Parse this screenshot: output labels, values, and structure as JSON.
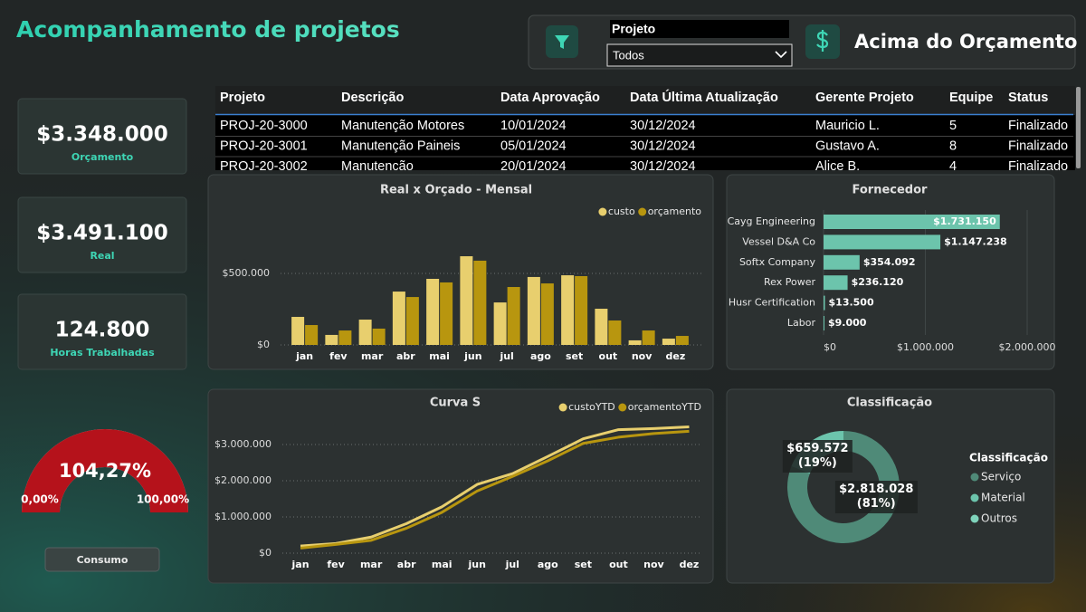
{
  "header": {
    "title": "Acompanhamento de projetos"
  },
  "filter": {
    "label": "Projeto",
    "selected": "Todos"
  },
  "status": {
    "label": "Acima do Orçamento"
  },
  "kpis": [
    {
      "value": "$3.348.000",
      "label": "Orçamento"
    },
    {
      "value": "$3.491.100",
      "label": "Real"
    },
    {
      "value": "124.800",
      "label": "Horas Trabalhadas"
    }
  ],
  "gauge": {
    "value": 104.27,
    "value_label": "104,27%",
    "min": {
      "value": 0,
      "label": "0,00%"
    },
    "max": {
      "value": 100,
      "label": "100,00%"
    },
    "color": "#b5121b",
    "button": "Consumo"
  },
  "table": {
    "columns": [
      "Projeto",
      "Descrição",
      "Data Aprovação",
      "Data Última Atualização",
      "Gerente Projeto",
      "Equipe",
      "Status"
    ],
    "rows": [
      [
        "PROJ-20-3000",
        "Manutenção Motores",
        "10/01/2024",
        "30/12/2024",
        "Mauricio L.",
        5,
        "Finalizado"
      ],
      [
        "PROJ-20-3001",
        "Manutenção Paineis",
        "05/01/2024",
        "30/12/2024",
        "Gustavo A.",
        8,
        "Finalizado"
      ],
      [
        "PROJ-20-3002",
        "Manutenção",
        "20/01/2024",
        "30/12/2024",
        "Alice B.",
        4,
        "Finalizado"
      ]
    ]
  },
  "chart_data": [
    {
      "type": "bar",
      "title": "Real x Orçado - Mensal",
      "categories": [
        "jan",
        "fev",
        "mar",
        "abr",
        "mai",
        "jun",
        "jul",
        "ago",
        "set",
        "out",
        "nov",
        "dez"
      ],
      "series": [
        {
          "name": "custo",
          "color": "#e8cf6e",
          "values": [
            196000,
            70000,
            177000,
            373000,
            462000,
            620000,
            297000,
            475000,
            487000,
            253000,
            32000,
            44000
          ]
        },
        {
          "name": "orçamento",
          "color": "#b8960f",
          "values": [
            139000,
            101000,
            114000,
            335000,
            437000,
            589000,
            405000,
            430000,
            481000,
            171000,
            101000,
            63000
          ]
        }
      ],
      "ylim": [
        0,
        700000
      ],
      "yticks": [
        {
          "value": 0,
          "label": "$0"
        },
        {
          "value": 500000,
          "label": "$500.000"
        }
      ],
      "grid": true,
      "legend": "top-right"
    },
    {
      "type": "bar",
      "orientation": "horizontal",
      "title": "Fornecedor",
      "categories": [
        "Cayg Engineering",
        "Vessel D&A Co",
        "Softx Company",
        "Rex Power",
        "Husr Certification",
        "Labor"
      ],
      "values": [
        1731150,
        1147238,
        354092,
        236120,
        13500,
        9000
      ],
      "value_labels": [
        "$1.731.150",
        "$1.147.238",
        "$354.092",
        "$236.120",
        "$13.500",
        "$9.000"
      ],
      "color": "#6cc4ac",
      "xlim": [
        0,
        2000000
      ],
      "xticks": [
        {
          "value": 0,
          "label": "$0"
        },
        {
          "value": 1000000,
          "label": "$1.000.000"
        },
        {
          "value": 2000000,
          "label": "$2.000.000"
        }
      ]
    },
    {
      "type": "line",
      "title": "Curva S",
      "categories": [
        "jan",
        "fev",
        "mar",
        "abr",
        "mai",
        "jun",
        "jul",
        "ago",
        "set",
        "out",
        "nov",
        "dez"
      ],
      "series": [
        {
          "name": "custoYTD",
          "color": "#e8cf6e",
          "values": [
            196000,
            266000,
            443000,
            816000,
            1278000,
            1898000,
            2195000,
            2670000,
            3157000,
            3410000,
            3442000,
            3486000
          ]
        },
        {
          "name": "orçamentoYTD",
          "color": "#b8960f",
          "values": [
            139000,
            240000,
            354000,
            689000,
            1126000,
            1715000,
            2120000,
            2550000,
            3031000,
            3202000,
            3303000,
            3366000
          ]
        }
      ],
      "ylim": [
        0,
        3500000
      ],
      "yticks": [
        {
          "value": 0,
          "label": "$0"
        },
        {
          "value": 1000000,
          "label": "$1.000.000"
        },
        {
          "value": 2000000,
          "label": "$2.000.000"
        },
        {
          "value": 3000000,
          "label": "$3.000.000"
        }
      ],
      "grid": true,
      "legend": "top-right"
    },
    {
      "type": "donut",
      "title": "Classificação",
      "legend_title": "Classificação",
      "categories": [
        "Serviço",
        "Material",
        "Outros"
      ],
      "values": [
        2818028,
        659572,
        0
      ],
      "value_labels": [
        "$2.818.028\n(81%)",
        "$659.572\n(19%)",
        null
      ],
      "colors": [
        "#4f8a78",
        "#6cc4ac",
        "#7fd3bb"
      ]
    }
  ]
}
